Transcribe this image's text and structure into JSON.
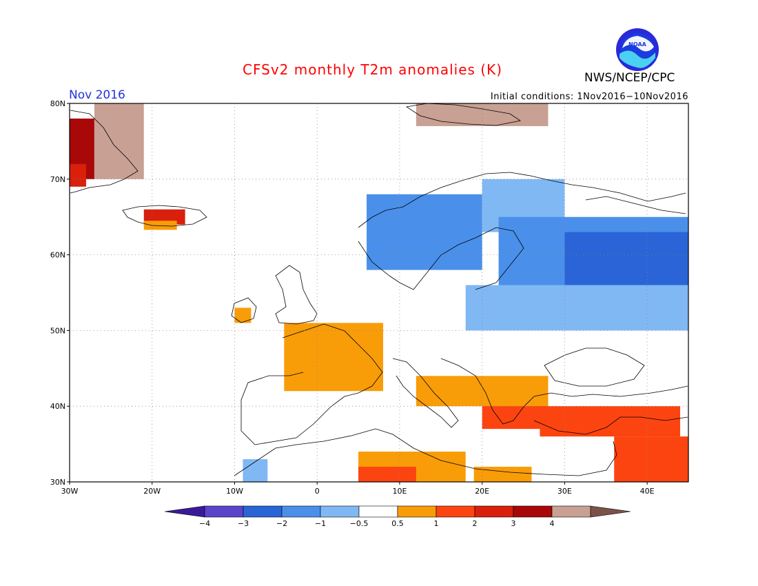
{
  "title": "CFSv2 monthly T2m anomalies (K)",
  "agency": "NWS/NCEP/CPC",
  "logo_text": "NOAA",
  "month_label": "Nov 2016",
  "initial_conditions": "Initial conditions: 1Nov2016−10Nov2016",
  "map": {
    "lon_range": [
      -30,
      45
    ],
    "lat_range": [
      30,
      80
    ],
    "lon_ticks": [
      {
        "value": -30,
        "label": "30W"
      },
      {
        "value": -20,
        "label": "20W"
      },
      {
        "value": -10,
        "label": "10W"
      },
      {
        "value": 0,
        "label": "0"
      },
      {
        "value": 10,
        "label": "10E"
      },
      {
        "value": 20,
        "label": "20E"
      },
      {
        "value": 30,
        "label": "30E"
      },
      {
        "value": 40,
        "label": "40E"
      }
    ],
    "lat_ticks": [
      {
        "value": 80,
        "label": "80N"
      },
      {
        "value": 70,
        "label": "70N"
      },
      {
        "value": 60,
        "label": "60N"
      },
      {
        "value": 50,
        "label": "50N"
      },
      {
        "value": 40,
        "label": "40N"
      },
      {
        "value": 30,
        "label": "30N"
      }
    ],
    "grid": "dotted",
    "anomaly_regions": [
      {
        "level": "3",
        "lon": [
          -30,
          -27
        ],
        "lat": [
          70,
          78
        ]
      },
      {
        "level": "4",
        "lon": [
          -27,
          -21
        ],
        "lat": [
          70,
          80
        ]
      },
      {
        "level": "2",
        "lon": [
          -30,
          -28
        ],
        "lat": [
          69,
          72
        ]
      },
      {
        "level": "2",
        "lon": [
          -21,
          -16
        ],
        "lat": [
          64,
          66
        ]
      },
      {
        "level": "0.5",
        "lon": [
          -21,
          -17
        ],
        "lat": [
          63.3,
          64.5
        ]
      },
      {
        "level": "4",
        "lon": [
          12,
          28
        ],
        "lat": [
          77,
          80
        ]
      },
      {
        "level": "-2",
        "lon": [
          6,
          20
        ],
        "lat": [
          58,
          68
        ]
      },
      {
        "level": "-1",
        "lon": [
          20,
          30
        ],
        "lat": [
          63,
          70
        ]
      },
      {
        "level": "-2",
        "lon": [
          22,
          45
        ],
        "lat": [
          55,
          65
        ]
      },
      {
        "level": "-3",
        "lon": [
          30,
          45
        ],
        "lat": [
          56,
          63
        ]
      },
      {
        "level": "-1",
        "lon": [
          18,
          45
        ],
        "lat": [
          50,
          56
        ]
      },
      {
        "level": "0.5",
        "lon": [
          -4,
          8
        ],
        "lat": [
          42,
          51
        ]
      },
      {
        "level": "0.5",
        "lon": [
          -10,
          -8
        ],
        "lat": [
          51,
          53
        ]
      },
      {
        "level": "1",
        "lon": [
          20,
          28
        ],
        "lat": [
          37,
          42
        ]
      },
      {
        "level": "0.5",
        "lon": [
          12,
          28
        ],
        "lat": [
          40,
          44
        ]
      },
      {
        "level": "1",
        "lon": [
          27,
          44
        ],
        "lat": [
          36,
          40
        ]
      },
      {
        "level": "1",
        "lon": [
          36,
          45
        ],
        "lat": [
          30,
          36
        ]
      },
      {
        "level": "0.5",
        "lon": [
          5,
          18
        ],
        "lat": [
          30,
          34
        ]
      },
      {
        "level": "1",
        "lon": [
          5,
          12
        ],
        "lat": [
          30,
          32
        ]
      },
      {
        "level": "-1",
        "lon": [
          -9,
          -6
        ],
        "lat": [
          30,
          33
        ]
      },
      {
        "level": "0.5",
        "lon": [
          19,
          26
        ],
        "lat": [
          30,
          32
        ]
      }
    ]
  },
  "colorbar": {
    "labels": [
      "−4",
      "−3",
      "−2",
      "−1",
      "−0.5",
      "0.5",
      "1",
      "2",
      "3",
      "4"
    ],
    "levels": [
      {
        "key": "<-4",
        "color": "#3b1a9a"
      },
      {
        "key": "-4",
        "color": "#5b44cc"
      },
      {
        "key": "-3",
        "color": "#2a64d6"
      },
      {
        "key": "-2",
        "color": "#4a90ea"
      },
      {
        "key": "-1",
        "color": "#80b8f4"
      },
      {
        "key": "-0.5",
        "color": "#ffffff"
      },
      {
        "key": "0.5",
        "color": "#f89c08"
      },
      {
        "key": "1",
        "color": "#fc4410"
      },
      {
        "key": "2",
        "color": "#d8200c"
      },
      {
        "key": "3",
        "color": "#a80808"
      },
      {
        "key": "4",
        "color": "#c8a094"
      },
      {
        "key": ">4",
        "color": "#7c5248"
      }
    ]
  }
}
